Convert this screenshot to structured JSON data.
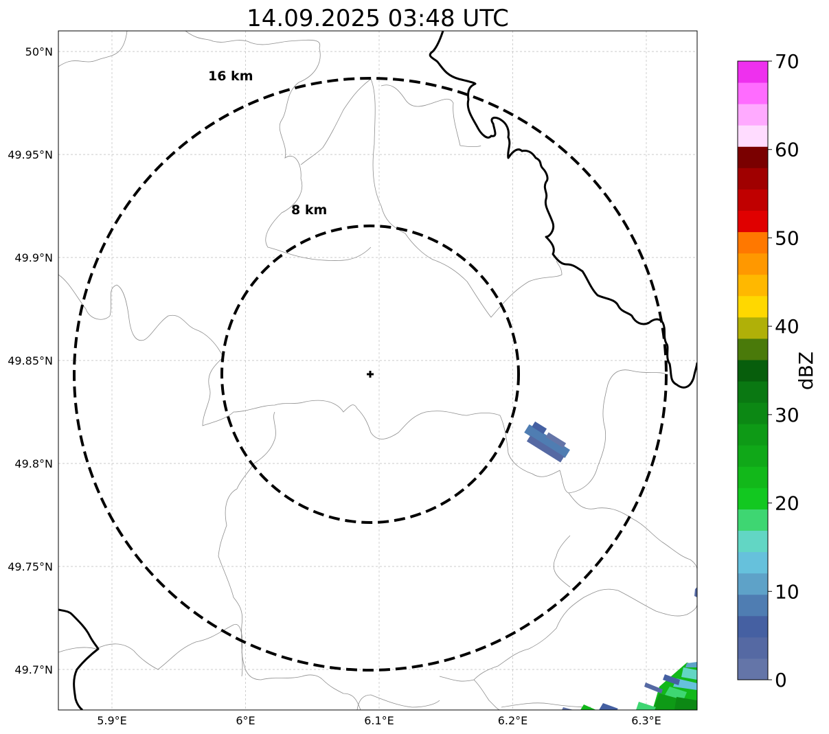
{
  "title": "14.09.2025 03:48 UTC",
  "map": {
    "lon_ticks": [
      "5.9°E",
      "6°E",
      "6.1°E",
      "6.2°E",
      "6.3°E"
    ],
    "lat_ticks": [
      "50°N",
      "49.95°N",
      "49.9°N",
      "49.85°N",
      "49.8°N",
      "49.75°N",
      "49.7°N"
    ],
    "grid": "dashed",
    "radar_site_marker": "plus",
    "range_rings": [
      {
        "label": "8 km",
        "style": "dashed"
      },
      {
        "label": "16 km",
        "style": "dashed"
      }
    ]
  },
  "colorbar": {
    "label": "dBZ",
    "ticks": [
      "0",
      "10",
      "20",
      "30",
      "40",
      "50",
      "60",
      "70"
    ],
    "colors": [
      "#6475a8",
      "#5569a3",
      "#4560a2",
      "#4f7db2",
      "#5ea2c8",
      "#66c1dc",
      "#62d6c4",
      "#3ed672",
      "#12c820",
      "#12b81a",
      "#10a818",
      "#0e9a16",
      "#0c8814",
      "#0a7812",
      "#075e0c",
      "#4a7a0a",
      "#b0b008",
      "#ffd800",
      "#ffb800",
      "#ff9800",
      "#ff7800",
      "#e00000",
      "#c00000",
      "#a00000",
      "#7a0000",
      "#ffdcff",
      "#ffaaff",
      "#ff6cff",
      "#ee30ee"
    ]
  },
  "colors": {
    "border": "#000000",
    "admin_lines": "#8c8c8c",
    "grid": "#bbbbbb"
  }
}
